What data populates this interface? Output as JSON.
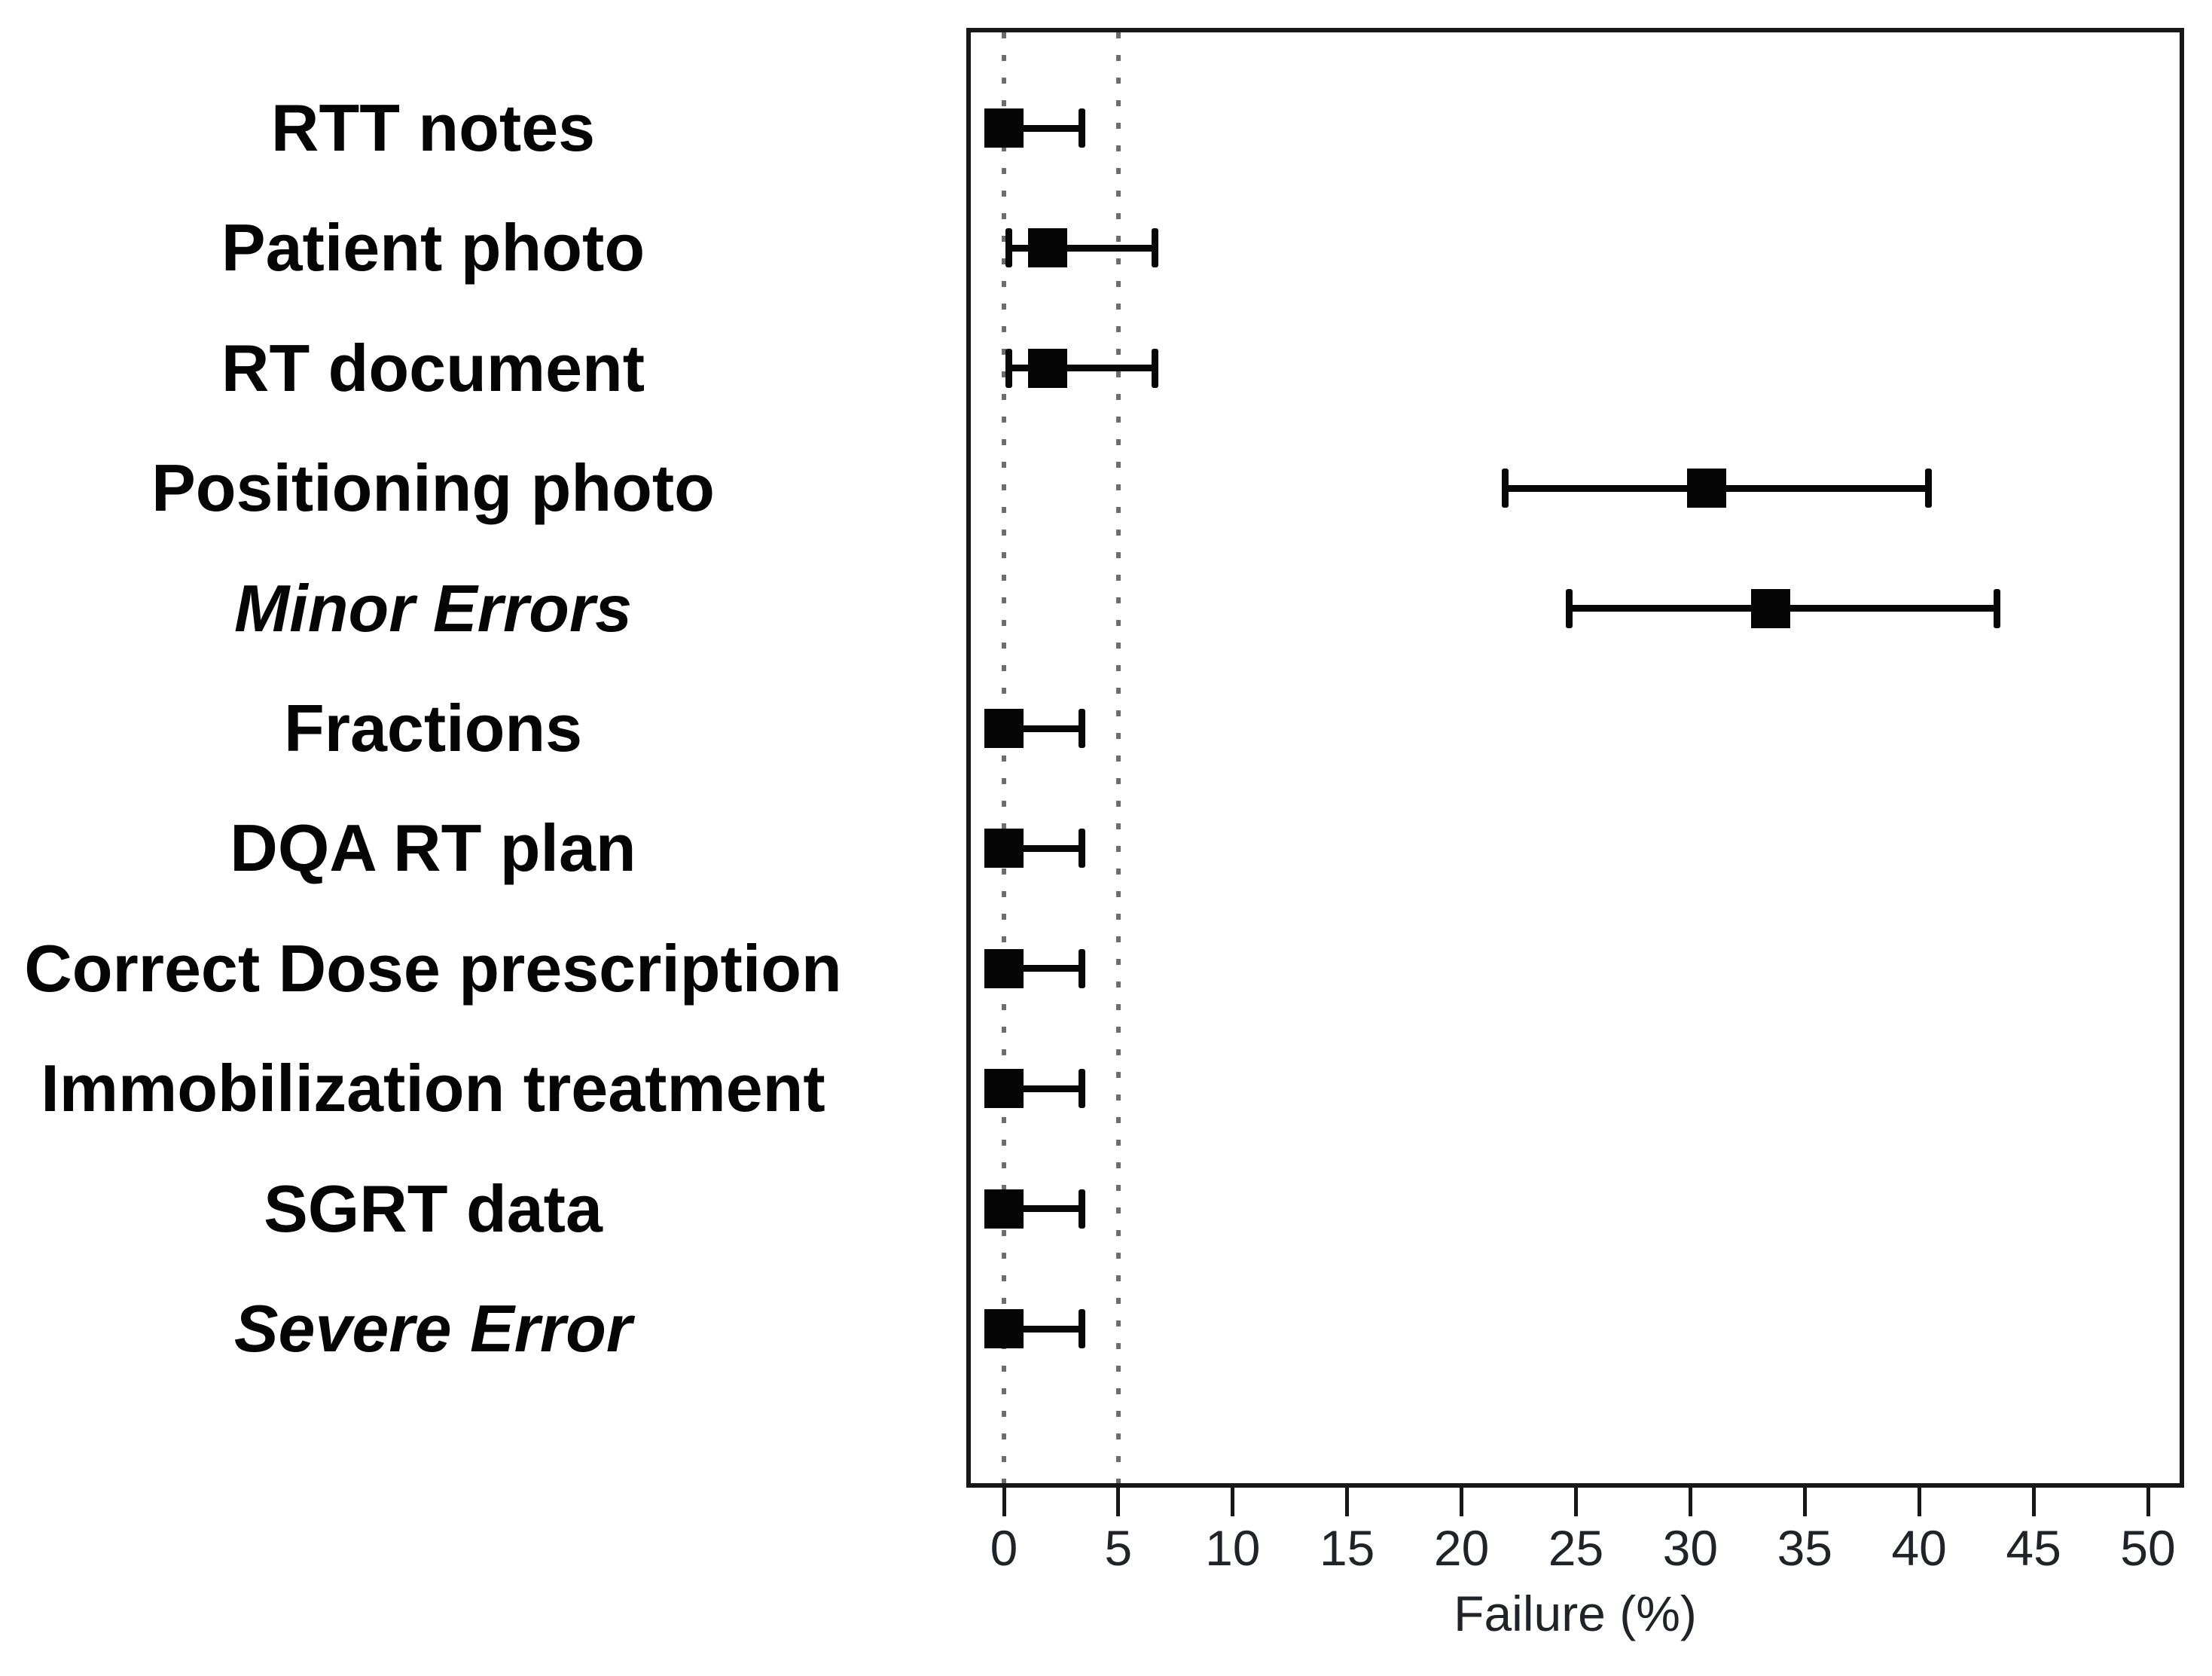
{
  "figure": {
    "background_color": "#ffffff",
    "marker_color": "#050505",
    "box_color": "#171717",
    "ref_line_color": "#6d6d6d",
    "tick_text_color": "#202327"
  },
  "chart_data": {
    "type": "scatter",
    "subtype": "horizontal-dot-plot-with-error-bars",
    "title": "",
    "xlabel": "Failure (%)",
    "ylabel": "",
    "xlim": [
      -1.7,
      51.7
    ],
    "x_ticks": [
      0,
      5,
      10,
      15,
      20,
      25,
      30,
      35,
      40,
      45,
      50
    ],
    "x_tick_labels": [
      "0",
      "5",
      "10",
      "15",
      "20",
      "25",
      "30",
      "35",
      "40",
      "45",
      "50"
    ],
    "reference_lines_x": [
      0,
      5
    ],
    "reference_line_style": "dotted",
    "grid": false,
    "legend": "none",
    "point_marker": "filled-square",
    "error_bar_meaning": "95% CI",
    "categories": [
      {
        "label": "RTT notes",
        "emphasis": false,
        "value": 0.0,
        "ci_low": 0.0,
        "ci_high": 3.4
      },
      {
        "label": "Patient photo",
        "emphasis": false,
        "value": 1.9,
        "ci_low": 0.2,
        "ci_high": 6.6
      },
      {
        "label": "RT document",
        "emphasis": false,
        "value": 1.9,
        "ci_low": 0.2,
        "ci_high": 6.6
      },
      {
        "label": "Positioning photo",
        "emphasis": false,
        "value": 30.7,
        "ci_low": 21.9,
        "ci_high": 40.4
      },
      {
        "label": "Minor Errors",
        "emphasis": true,
        "value": 33.5,
        "ci_low": 24.7,
        "ci_high": 43.4
      },
      {
        "label": "Fractions",
        "emphasis": false,
        "value": 0.0,
        "ci_low": 0.0,
        "ci_high": 3.4
      },
      {
        "label": "DQA RT plan",
        "emphasis": false,
        "value": 0.0,
        "ci_low": 0.0,
        "ci_high": 3.4
      },
      {
        "label": "Correct Dose prescription",
        "emphasis": false,
        "value": 0.0,
        "ci_low": 0.0,
        "ci_high": 3.4
      },
      {
        "label": "Immobilization treatment",
        "emphasis": false,
        "value": 0.0,
        "ci_low": 0.0,
        "ci_high": 3.4
      },
      {
        "label": "SGRT data",
        "emphasis": false,
        "value": 0.0,
        "ci_low": 0.0,
        "ci_high": 3.4
      },
      {
        "label": "Severe Error",
        "emphasis": true,
        "value": 0.0,
        "ci_low": 0.0,
        "ci_high": 3.4
      }
    ]
  }
}
